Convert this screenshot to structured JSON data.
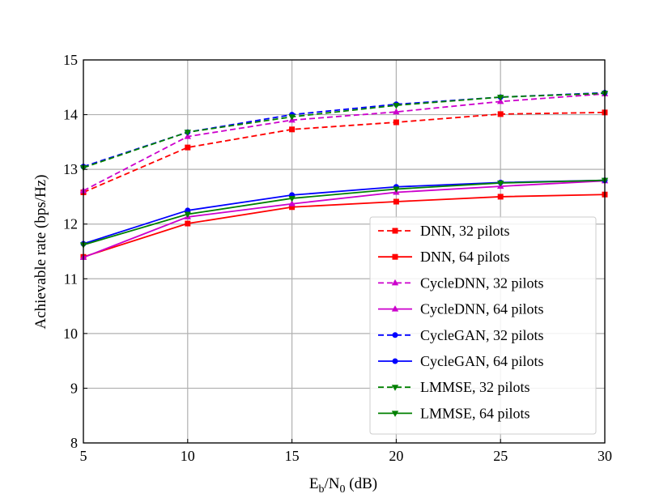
{
  "chart_data": {
    "type": "line",
    "title": "",
    "xlabel": {
      "base": "E",
      "sub1": "b",
      "mid": "/N",
      "sub2": "0",
      "tail": " (dB)"
    },
    "ylabel": "Achievable rate (bps/Hz)",
    "xlim": [
      5,
      30
    ],
    "ylim": [
      8,
      15
    ],
    "xticks": [
      5,
      10,
      15,
      20,
      25,
      30
    ],
    "yticks": [
      8,
      9,
      10,
      11,
      12,
      13,
      14,
      15
    ],
    "grid": true,
    "legend_position": "lower-right",
    "x": [
      5,
      10,
      15,
      20,
      25,
      30
    ],
    "series": [
      {
        "name": "DNN, 32 pilots",
        "color": "#ff0000",
        "linestyle": "dashed",
        "marker": "square",
        "values": [
          12.58,
          13.4,
          13.73,
          13.86,
          14.01,
          14.04
        ]
      },
      {
        "name": "DNN, 64 pilots",
        "color": "#ff0000",
        "linestyle": "solid",
        "marker": "square",
        "values": [
          11.4,
          12.01,
          12.31,
          12.41,
          12.5,
          12.54
        ]
      },
      {
        "name": "CycleDNN, 32 pilots",
        "color": "#cc00cc",
        "linestyle": "dashed",
        "marker": "triangle-up",
        "values": [
          12.61,
          13.6,
          13.9,
          14.05,
          14.24,
          14.38
        ]
      },
      {
        "name": "CycleDNN, 64 pilots",
        "color": "#cc00cc",
        "linestyle": "solid",
        "marker": "triangle-up",
        "values": [
          11.39,
          12.13,
          12.37,
          12.58,
          12.69,
          12.79
        ]
      },
      {
        "name": "CycleGAN, 32 pilots",
        "color": "#0000ff",
        "linestyle": "dashed",
        "marker": "circle",
        "values": [
          13.05,
          13.68,
          14.0,
          14.19,
          14.32,
          14.4
        ]
      },
      {
        "name": "CycleGAN, 64 pilots",
        "color": "#0000ff",
        "linestyle": "solid",
        "marker": "circle",
        "values": [
          11.64,
          12.25,
          12.53,
          12.68,
          12.76,
          12.8
        ]
      },
      {
        "name": "LMMSE, 32 pilots",
        "color": "#008000",
        "linestyle": "dashed",
        "marker": "triangle-down",
        "values": [
          13.03,
          13.68,
          13.96,
          14.17,
          14.32,
          14.39
        ]
      },
      {
        "name": "LMMSE, 64 pilots",
        "color": "#008000",
        "linestyle": "solid",
        "marker": "triangle-down",
        "values": [
          11.62,
          12.18,
          12.47,
          12.64,
          12.75,
          12.8
        ]
      }
    ]
  }
}
